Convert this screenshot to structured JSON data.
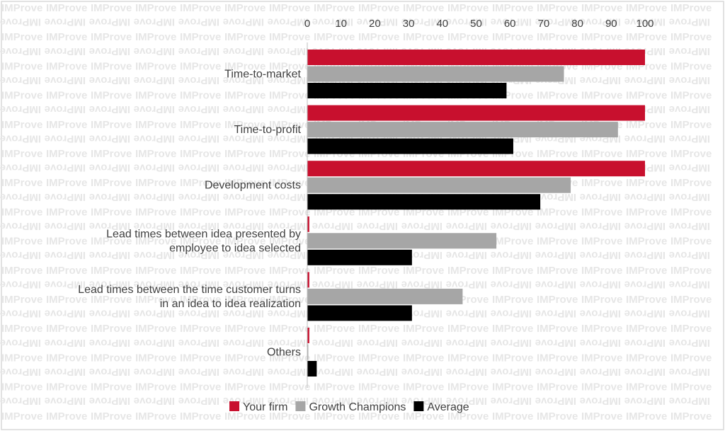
{
  "chart_data": {
    "type": "bar",
    "orientation": "horizontal",
    "categories": [
      [
        "Time-to-market"
      ],
      [
        "Time-to-profit"
      ],
      [
        "Development costs"
      ],
      [
        "Lead times between idea presented by",
        "employee to idea selected"
      ],
      [
        "Lead times between the time customer turns",
        "in an idea to idea realization"
      ],
      [
        "Others"
      ]
    ],
    "series": [
      {
        "name": "Your firm",
        "color": "#c8102e",
        "values": [
          100,
          100,
          100,
          0.6,
          0.6,
          0.6
        ]
      },
      {
        "name": "Growth Champions",
        "color": "#a6a6a6",
        "values": [
          76,
          92,
          78,
          56,
          46,
          0.3
        ]
      },
      {
        "name": "Average",
        "color": "#000000",
        "values": [
          59,
          61,
          69,
          31,
          31,
          2.8
        ]
      }
    ],
    "x_ticks": [
      0,
      10,
      20,
      30,
      40,
      50,
      60,
      70,
      80,
      90,
      100
    ],
    "xlim": [
      0,
      100
    ],
    "x_axis_position": "top",
    "grid": false,
    "legend_position": "bottom-center",
    "watermark": "IMProve",
    "title": "",
    "xlabel": "",
    "ylabel": ""
  }
}
